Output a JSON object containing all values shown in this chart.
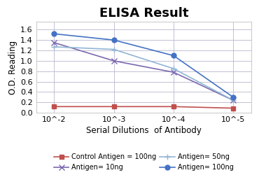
{
  "title": "ELISA Result",
  "xlabel": "Serial Dilutions  of Antibody",
  "ylabel": "O.D. Reading",
  "x_positions": [
    0,
    1,
    2,
    3
  ],
  "x_tick_labels": [
    "10^-2",
    "10^-3",
    "10^-4",
    "10^-5"
  ],
  "series": [
    {
      "label": "Control Antigen = 100ng",
      "color": "#c0504d",
      "marker": "s",
      "markersize": 5,
      "values": [
        0.12,
        0.12,
        0.12,
        0.09
      ],
      "linestyle": "-"
    },
    {
      "label": "Antigen= 10ng",
      "color": "#7b68ae",
      "marker": "x",
      "markersize": 6,
      "values": [
        1.35,
        1.0,
        0.78,
        0.24
      ],
      "linestyle": "-"
    },
    {
      "label": "Antigen= 50ng",
      "color": "#92b4d4",
      "marker": "+",
      "markersize": 6,
      "values": [
        1.27,
        1.22,
        0.85,
        0.24
      ],
      "linestyle": "-"
    },
    {
      "label": "Antigen= 100ng",
      "color": "#4472c4",
      "marker": "o",
      "markersize": 5,
      "values": [
        1.52,
        1.4,
        1.1,
        0.3
      ],
      "linestyle": "-"
    }
  ],
  "ylim": [
    0,
    1.75
  ],
  "yticks": [
    0.0,
    0.2,
    0.4,
    0.6,
    0.8,
    1.0,
    1.2,
    1.4,
    1.6
  ],
  "background_color": "#ffffff",
  "grid_color": "#b8b8d0",
  "title_fontsize": 13,
  "axis_label_fontsize": 8.5,
  "tick_fontsize": 8,
  "legend_fontsize": 7
}
